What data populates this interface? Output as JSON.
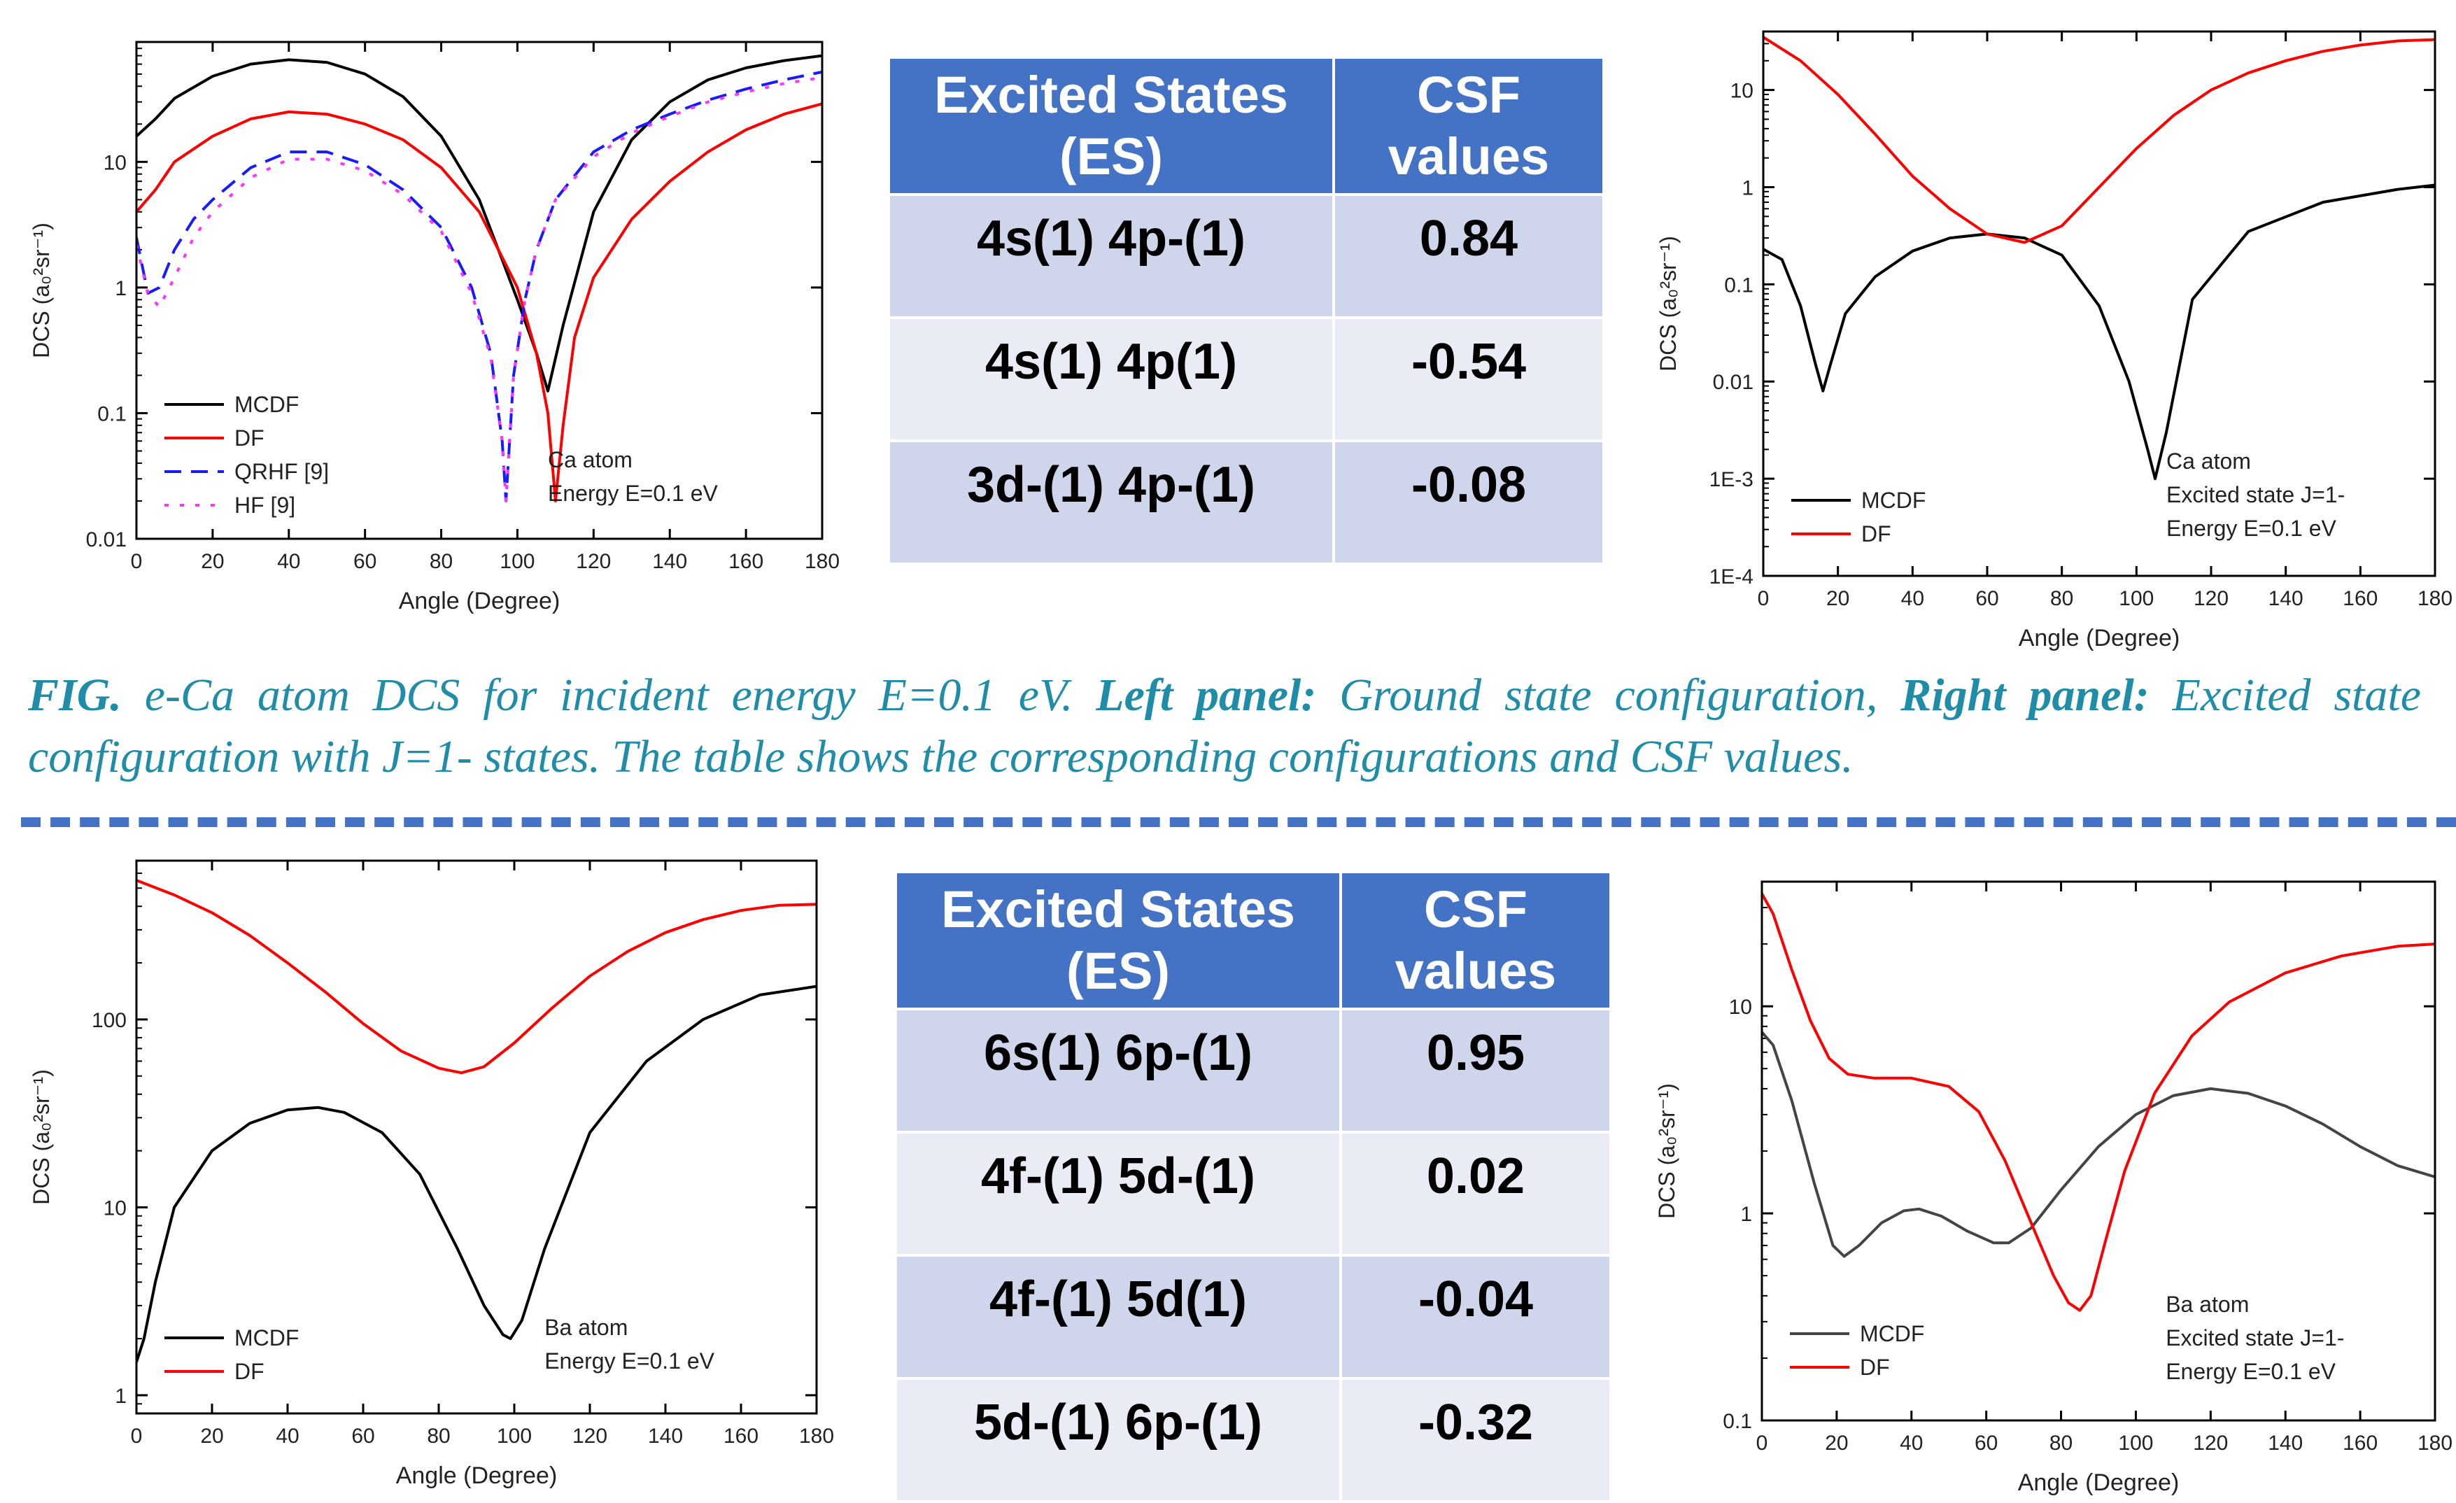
{
  "charts": [
    {
      "type": "line",
      "yscale": "log",
      "xlim": [
        0,
        180
      ],
      "ylim": [
        0.01,
        90
      ],
      "xticks": [
        0,
        20,
        40,
        60,
        80,
        100,
        120,
        140,
        160,
        180
      ],
      "yticks": [
        0.01,
        0.1,
        1,
        10
      ],
      "ytick_labels": [
        "0.01",
        "0.1",
        "1",
        "10"
      ],
      "xlabel": "Angle (Degree)",
      "ylabel": "DCS (a₀²sr⁻¹)",
      "annotation": [
        "Ca atom",
        "Energy E=0.1 eV"
      ],
      "legend_position": "bottom-left",
      "series": [
        {
          "name": "MCDF",
          "color": "#000000",
          "dash": "",
          "x": [
            0,
            5,
            10,
            20,
            30,
            40,
            50,
            60,
            70,
            80,
            90,
            100,
            105,
            108,
            112,
            120,
            130,
            140,
            150,
            160,
            170,
            180
          ],
          "y": [
            16,
            22,
            32,
            48,
            60,
            65,
            62,
            50,
            33,
            16,
            5,
            0.8,
            0.3,
            0.15,
            0.5,
            4,
            15,
            30,
            45,
            56,
            64,
            70
          ]
        },
        {
          "name": "DF",
          "color": "#ff0000",
          "dash": "",
          "x": [
            0,
            5,
            10,
            20,
            30,
            40,
            50,
            60,
            70,
            80,
            90,
            95,
            100,
            105,
            108,
            110,
            112,
            115,
            120,
            130,
            140,
            150,
            160,
            170,
            180
          ],
          "y": [
            4,
            6,
            10,
            16,
            22,
            25,
            24,
            20,
            15,
            9,
            4,
            2,
            1,
            0.3,
            0.1,
            0.02,
            0.08,
            0.4,
            1.2,
            3.5,
            7,
            12,
            18,
            24,
            29
          ]
        },
        {
          "name": "QRHF [9]",
          "color": "#1a1aff",
          "dash": "24,14",
          "x": [
            0,
            3,
            6,
            10,
            15,
            20,
            30,
            40,
            50,
            60,
            70,
            80,
            88,
            93,
            96,
            97,
            99,
            102,
            105,
            110,
            120,
            130,
            140,
            150,
            160,
            170,
            180
          ],
          "y": [
            2.5,
            0.9,
            1.0,
            2,
            3.5,
            5,
            9,
            12,
            12,
            9.5,
            6,
            3,
            1,
            0.3,
            0.06,
            0.02,
            0.2,
            0.8,
            2,
            5,
            12,
            18,
            24,
            31,
            38,
            45,
            52
          ]
        },
        {
          "name": "HF [9]",
          "color": "#ff33ff",
          "dash": "6,16",
          "x": [
            0,
            3,
            6,
            10,
            15,
            20,
            30,
            40,
            50,
            60,
            70,
            80,
            88,
            93,
            96,
            97,
            99,
            102,
            105,
            110,
            120,
            130,
            140,
            150,
            160,
            170,
            180
          ],
          "y": [
            2.2,
            0.9,
            0.7,
            1.2,
            2.5,
            4,
            7.5,
            10.5,
            10.5,
            8.5,
            5.5,
            2.8,
            0.9,
            0.28,
            0.06,
            0.02,
            0.2,
            0.8,
            2,
            5,
            11,
            17,
            23,
            30,
            36,
            42,
            47
          ]
        }
      ]
    },
    {
      "type": "line",
      "yscale": "log",
      "xlim": [
        0,
        180
      ],
      "ylim": [
        0.0001,
        40
      ],
      "xticks": [
        0,
        20,
        40,
        60,
        80,
        100,
        120,
        140,
        160,
        180
      ],
      "yticks": [
        0.0001,
        0.001,
        0.01,
        0.1,
        1,
        10
      ],
      "ytick_labels": [
        "1E-4",
        "1E-3",
        "0.01",
        "0.1",
        "1",
        "10"
      ],
      "xlabel": "Angle (Degree)",
      "ylabel": "DCS (a₀²sr⁻¹)",
      "annotation": [
        "Ca atom",
        "Excited state J=1-",
        "Energy E=0.1 eV"
      ],
      "legend_position": "bottom-left",
      "series": [
        {
          "name": "MCDF",
          "color": "#000000",
          "dash": "",
          "x": [
            0,
            5,
            10,
            14,
            16,
            18,
            22,
            30,
            40,
            50,
            60,
            70,
            80,
            90,
            98,
            103,
            105,
            108,
            115,
            130,
            150,
            170,
            180
          ],
          "y": [
            0.23,
            0.18,
            0.06,
            0.015,
            0.008,
            0.015,
            0.05,
            0.12,
            0.22,
            0.3,
            0.33,
            0.3,
            0.2,
            0.06,
            0.01,
            0.002,
            0.001,
            0.003,
            0.07,
            0.35,
            0.7,
            0.95,
            1.05
          ]
        },
        {
          "name": "DF",
          "color": "#ff0000",
          "dash": "",
          "x": [
            0,
            10,
            20,
            30,
            40,
            50,
            60,
            70,
            80,
            90,
            100,
            110,
            120,
            130,
            140,
            150,
            160,
            170,
            180
          ],
          "y": [
            35,
            20,
            9,
            3.5,
            1.3,
            0.6,
            0.33,
            0.27,
            0.4,
            1,
            2.5,
            5.5,
            10,
            15,
            20,
            25,
            29,
            32,
            33
          ]
        }
      ]
    },
    {
      "type": "line",
      "yscale": "log",
      "xlim": [
        0,
        180
      ],
      "ylim": [
        0.8,
        700
      ],
      "xticks": [
        0,
        20,
        40,
        60,
        80,
        100,
        120,
        140,
        160,
        180
      ],
      "yticks": [
        1,
        10,
        100
      ],
      "ytick_labels": [
        "1",
        "10",
        "100"
      ],
      "xlabel": "Angle (Degree)",
      "ylabel": "DCS (a₀²sr⁻¹)",
      "annotation": [
        "Ba atom",
        "Energy E=0.1 eV"
      ],
      "legend_position": "bottom-left",
      "series": [
        {
          "name": "MCDF",
          "color": "#000000",
          "dash": "",
          "x": [
            0,
            2,
            5,
            10,
            20,
            30,
            40,
            48,
            55,
            65,
            75,
            85,
            92,
            97,
            99,
            102,
            108,
            120,
            135,
            150,
            165,
            180
          ],
          "y": [
            1.5,
            2,
            4,
            10,
            20,
            28,
            33,
            34,
            32,
            25,
            15,
            6,
            3,
            2.1,
            2,
            2.5,
            6,
            25,
            60,
            100,
            135,
            150
          ]
        },
        {
          "name": "DF",
          "color": "#ff0000",
          "dash": "",
          "x": [
            0,
            10,
            20,
            30,
            40,
            50,
            60,
            70,
            80,
            86,
            92,
            100,
            110,
            120,
            130,
            140,
            150,
            160,
            170,
            180
          ],
          "y": [
            550,
            460,
            370,
            280,
            200,
            140,
            95,
            68,
            55,
            52,
            56,
            75,
            115,
            170,
            230,
            290,
            340,
            380,
            405,
            410
          ]
        }
      ]
    },
    {
      "type": "line",
      "yscale": "log",
      "xlim": [
        0,
        180
      ],
      "ylim": [
        0.1,
        40
      ],
      "xticks": [
        0,
        20,
        40,
        60,
        80,
        100,
        120,
        140,
        160,
        180
      ],
      "yticks": [
        0.1,
        1,
        10
      ],
      "ytick_labels": [
        "0.1",
        "1",
        "10"
      ],
      "xlabel": "Angle (Degree)",
      "ylabel": "DCS (a₀²sr⁻¹)",
      "annotation": [
        "Ba atom",
        "Excited state J=1-",
        "Energy E=0.1 eV"
      ],
      "legend_position": "bottom-left",
      "series": [
        {
          "name": "MCDF",
          "color": "#444444",
          "dash": "",
          "x": [
            0,
            3,
            8,
            14,
            19,
            22,
            26,
            32,
            38,
            42,
            48,
            55,
            62,
            66,
            72,
            80,
            90,
            100,
            110,
            120,
            130,
            140,
            150,
            160,
            170,
            180
          ],
          "y": [
            7.5,
            6.5,
            3.5,
            1.4,
            0.7,
            0.62,
            0.7,
            0.9,
            1.03,
            1.05,
            0.97,
            0.82,
            0.72,
            0.72,
            0.85,
            1.3,
            2.1,
            3,
            3.7,
            4,
            3.8,
            3.3,
            2.7,
            2.1,
            1.7,
            1.5
          ]
        },
        {
          "name": "DF",
          "color": "#ff0000",
          "dash": "",
          "x": [
            0,
            3,
            8,
            13,
            18,
            23,
            30,
            40,
            50,
            58,
            65,
            72,
            78,
            82,
            85,
            88,
            92,
            97,
            105,
            115,
            125,
            140,
            155,
            170,
            180
          ],
          "y": [
            35,
            28,
            15,
            8.5,
            5.6,
            4.7,
            4.5,
            4.5,
            4.1,
            3.1,
            1.8,
            0.9,
            0.5,
            0.37,
            0.34,
            0.4,
            0.75,
            1.6,
            3.8,
            7.2,
            10.5,
            14.5,
            17.5,
            19.5,
            20
          ]
        }
      ]
    }
  ],
  "table1": {
    "headers": [
      "Excited States (ES)",
      "CSF values"
    ],
    "rows": [
      [
        "4s(1) 4p-(1)",
        "0.84"
      ],
      [
        "4s(1) 4p(1)",
        "-0.54"
      ],
      [
        "3d-(1) 4p-(1)",
        "-0.08"
      ]
    ]
  },
  "table2": {
    "headers": [
      "Excited States (ES)",
      "CSF values"
    ],
    "rows": [
      [
        "6s(1) 6p-(1)",
        "0.95"
      ],
      [
        "4f-(1) 5d-(1)",
        "0.02"
      ],
      [
        "4f-(1) 5d(1)",
        "-0.04"
      ],
      [
        "5d-(1) 6p-(1)",
        "-0.32"
      ]
    ]
  },
  "caption": {
    "fig": "FIG.",
    "part1": " e-Ca atom DCS for incident energy E=0.1 eV. ",
    "left_label": "Left panel:",
    "part2": " Ground state configuration, ",
    "right_label": "Right panel:",
    "part3": " Excited state configuration with J=1- states. The table shows the corresponding configurations and CSF values."
  },
  "colors": {
    "header_blue": "#4472c4",
    "row_dark": "#cfd5ea",
    "row_light": "#e9ebf5",
    "caption_teal": "#1f8ca8",
    "divider": "#4472c4"
  }
}
